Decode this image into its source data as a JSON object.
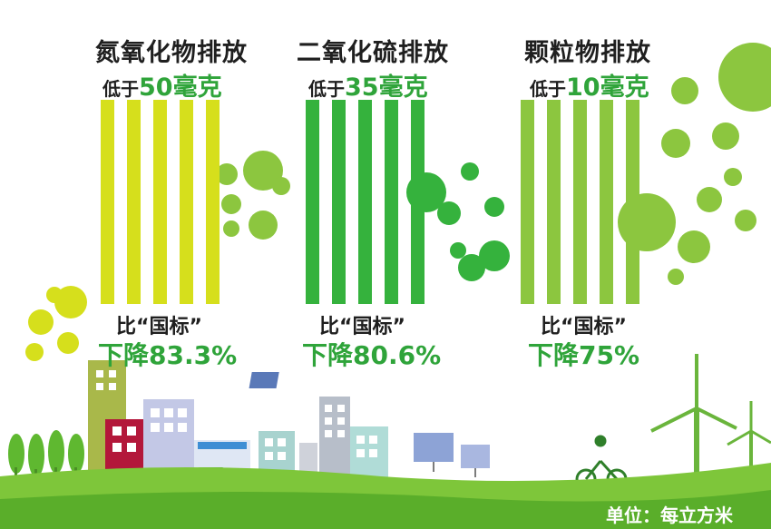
{
  "colors": {
    "yellow": "#d6df1c",
    "green_dark": "#35b23d",
    "green_light": "#8cc63f",
    "accent_text": "#2fa43a",
    "ground": "#7ec63a"
  },
  "groups": [
    {
      "title": "氮氧化物排放",
      "limit_prefix": "低于",
      "limit_value": "50",
      "limit_unit": "毫克",
      "compare_label": "比“国标”",
      "decrease": "下降83.3%"
    },
    {
      "title": "二氧化硫排放",
      "limit_prefix": "低于",
      "limit_value": "35",
      "limit_unit": "毫克",
      "compare_label": "比“国标”",
      "decrease": "下降80.6%"
    },
    {
      "title": "颗粒物排放",
      "limit_prefix": "低于",
      "limit_value": "10",
      "limit_unit": "毫克",
      "compare_label": "比“国标”",
      "decrease": "下降75%"
    }
  ],
  "unit_label": "单位：每立方米"
}
